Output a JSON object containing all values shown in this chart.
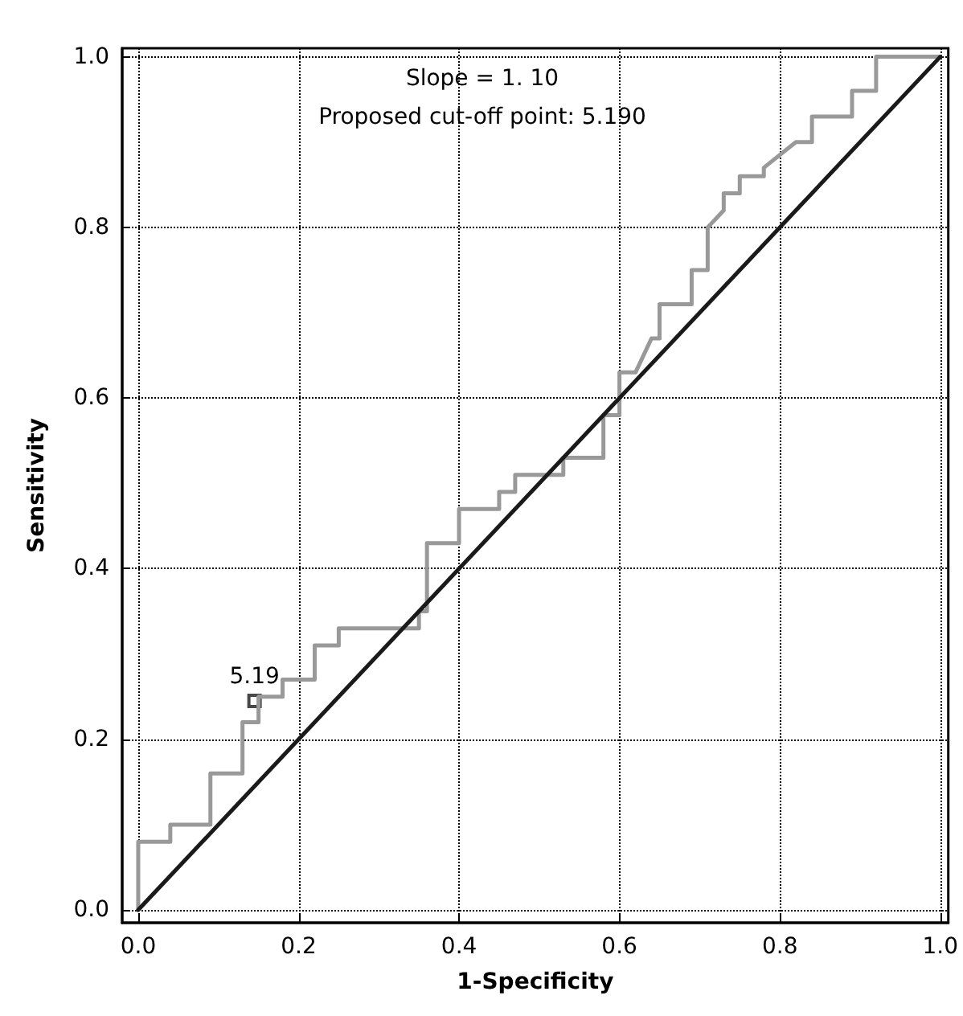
{
  "chart_data": {
    "type": "line",
    "xlabel": "1-Specificity",
    "ylabel": "Sensitivity",
    "annotations": [
      "Slope = 1. 10",
      "Proposed cut-off point: 5.190",
      {
        "text": "5.19",
        "x": 0.145,
        "y": 0.245
      }
    ],
    "xlim": [
      -0.02,
      1.01
    ],
    "ylim": [
      -0.015,
      1.01
    ],
    "xticks": [
      {
        "value": 0,
        "label": "0.0"
      },
      {
        "value": 0.2,
        "label": "0.2"
      },
      {
        "value": 0.4,
        "label": "0.4"
      },
      {
        "value": 0.6,
        "label": "0.6"
      },
      {
        "value": 0.8,
        "label": "0.8"
      },
      {
        "value": 1,
        "label": "1.0"
      }
    ],
    "yticks": [
      {
        "value": 0,
        "label": "0.0"
      },
      {
        "value": 0.2,
        "label": "0.2"
      },
      {
        "value": 0.4,
        "label": "0.4"
      },
      {
        "value": 0.6,
        "label": "0.6"
      },
      {
        "value": 0.8,
        "label": "0.8"
      },
      {
        "value": 1,
        "label": "1.0"
      }
    ],
    "grid": true,
    "marker": "none",
    "line_style": "solid",
    "series": [
      {
        "color": "#999999",
        "x": [
          0,
          0,
          0.04,
          0.04,
          0.09,
          0.09,
          0.13,
          0.13,
          0.15,
          0.15,
          0.18,
          0.18,
          0.22,
          0.22,
          0.25,
          0.25,
          0.35,
          0.35,
          0.36,
          0.36,
          0.4,
          0.4,
          0.45,
          0.45,
          0.47,
          0.47,
          0.53,
          0.53,
          0.58,
          0.58,
          0.6,
          0.6,
          0.62,
          0.64,
          0.65,
          0.65,
          0.69,
          0.69,
          0.71,
          0.71,
          0.73,
          0.73,
          0.75,
          0.75,
          0.78,
          0.78,
          0.82,
          0.84,
          0.84,
          0.89,
          0.89,
          0.92,
          0.92,
          1.0
        ],
        "values": [
          0,
          0.08,
          0.08,
          0.1,
          0.1,
          0.16,
          0.16,
          0.22,
          0.22,
          0.25,
          0.25,
          0.27,
          0.27,
          0.31,
          0.31,
          0.33,
          0.33,
          0.35,
          0.35,
          0.43,
          0.43,
          0.47,
          0.47,
          0.49,
          0.49,
          0.51,
          0.51,
          0.53,
          0.53,
          0.58,
          0.58,
          0.63,
          0.63,
          0.67,
          0.67,
          0.71,
          0.71,
          0.75,
          0.75,
          0.8,
          0.82,
          0.84,
          0.84,
          0.86,
          0.86,
          0.87,
          0.9,
          0.9,
          0.93,
          0.93,
          0.96,
          0.96,
          1.0,
          1.0
        ]
      },
      {
        "color": "#1a1a1a",
        "x": [
          0,
          1
        ],
        "values": [
          0,
          1
        ]
      },
      {
        "type": "scatter",
        "marker": "square",
        "color": "#1a1a1a",
        "x": [
          0.145
        ],
        "values": [
          0.245
        ]
      }
    ]
  }
}
